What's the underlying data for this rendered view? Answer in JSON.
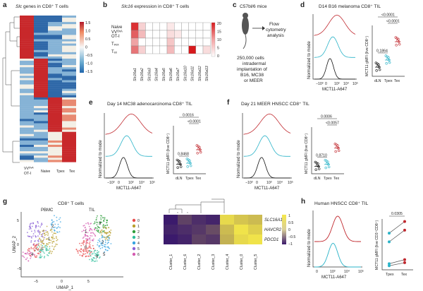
{
  "panels": {
    "a": {
      "letter": "a",
      "title_gene": "Slc",
      "title_rest": " genes in CD8⁺ T cells",
      "cols": [
        "VVᴼᵛᴬ OT-I",
        "Naive",
        "Tpex",
        "Tex"
      ],
      "scale_ticks": [
        "1.5",
        "1.0",
        "0.5",
        "0",
        "−0.5",
        "−1.0",
        "−1.5"
      ],
      "colors": {
        "high": "#c8282b",
        "mid": "#f5f0e8",
        "low": "#2a5fa0"
      }
    },
    "b": {
      "letter": "b",
      "title_gene": "Slc16",
      "title_rest": " expression in CD8⁺ T cells",
      "rows": [
        "Naive",
        "VVᴼᵛᴬ OT-I",
        "Tpex",
        "Tex"
      ],
      "genes": [
        "Slc16a1",
        "Slc16a2",
        "Slc16a3",
        "Slc16a4",
        "Slc16a5",
        "Slc16a6",
        "Slc16a7",
        "Slc16a10",
        "Slc16a11",
        "Slc16a12",
        "Slc16a13"
      ],
      "scale_ticks": [
        "20",
        "15",
        "10",
        "5",
        "0"
      ]
    },
    "c": {
      "letter": "c",
      "mouse": "C57bl/6 mice",
      "step1": "Flow",
      "step2": "cytometry",
      "step3": "analysis",
      "inj1": "250,000 cells",
      "inj2": "intradermal",
      "inj3": "implantation of",
      "inj4": "B16, MC38",
      "inj5": "or MEER"
    },
    "d": {
      "letter": "d",
      "title": "D14 B16 melanoma CD8⁺ TIL",
      "hist_ylabel": "Normalized to mode",
      "hist_xlabel": "MCT11-A647",
      "xticks": [
        "−10³",
        "0",
        "10³",
        "10⁴",
        "10⁵"
      ],
      "bar_ylabel": "MCT11 gMFI (live CD8⁺)",
      "groups": [
        "dLN",
        "Tpex",
        "Tex"
      ],
      "pvals": [
        "<0.0001",
        "<0.0001",
        "0.1864"
      ]
    },
    "e": {
      "letter": "e",
      "title": "Day 14 MC38 adenocarcinoma CD8⁺ TIL",
      "hist_ylabel": "Normalized to mode",
      "hist_xlabel": "MCT11-A647",
      "xticks": [
        "−10³",
        "0",
        "10³",
        "10⁴",
        "10⁵"
      ],
      "bar_ylabel": "MCT11 gMFI (live CD8⁺)",
      "groups": [
        "dLN",
        "Tpex",
        "Tex"
      ],
      "pvals": [
        "0.0016",
        "<0.0001",
        "0.8468"
      ]
    },
    "f": {
      "letter": "f",
      "title": "Day 21 MEER HNSCC CD8⁺ TIL",
      "hist_ylabel": "Normalized to mode",
      "hist_xlabel": "MCT11-A647",
      "xticks": [
        "−10³",
        "0",
        "10³",
        "10⁴",
        "10⁵"
      ],
      "bar_ylabel": "MCT11 gMFI (live CD8⁺)",
      "groups": [
        "dLN",
        "Tpex",
        "Tex"
      ],
      "pvals": [
        "0.0006",
        "<0.0057",
        "0.8710"
      ]
    },
    "g": {
      "letter": "g",
      "title": "CD8⁺ T cells",
      "sub1": "PBMC",
      "sub2": "TIL",
      "ylabel": "UMAP_2",
      "xlabel": "UMAP_1",
      "ticks": [
        "−5",
        "0",
        "5"
      ],
      "legend": [
        "0",
        "1",
        "2",
        "3",
        "4",
        "5",
        "6"
      ],
      "genes": [
        "SLC16A11",
        "HAVCR2",
        "PDCD1"
      ],
      "clusters": [
        "Cluster_1",
        "Cluster_6",
        "Cluster_2",
        "Cluster_3",
        "Cluster_4",
        "Cluster_0",
        "Cluster_5"
      ],
      "scale_ticks": [
        "1",
        "0.5",
        "0",
        "−0.5",
        "−1"
      ]
    },
    "h": {
      "letter": "h",
      "title": "Human HNSCC CD8⁺ TIL",
      "hist_ylabel": "Normalized to mode",
      "hist_xlabel": "MCT11-A647",
      "xticks": [
        "0",
        "10³",
        "10⁴",
        "10⁵"
      ],
      "bar_ylabel": "MCT11 gMFI (live CD3⁺CD8⁺)",
      "groups": [
        "Tpex",
        "Tex"
      ],
      "pval": "0.0305"
    }
  },
  "colors": {
    "red": "#c0282e",
    "teal": "#2ab3c8",
    "black": "#111111",
    "heat_red": "#d73027",
    "heat_blue": "#2c64a6",
    "purple": "#3f1d6b",
    "yellow": "#f0e34a",
    "clusters": [
      "#e84b4b",
      "#b79e2b",
      "#2e9e3b",
      "#2ebf9c",
      "#35a3e0",
      "#8a5fd6",
      "#d45bb0"
    ]
  }
}
